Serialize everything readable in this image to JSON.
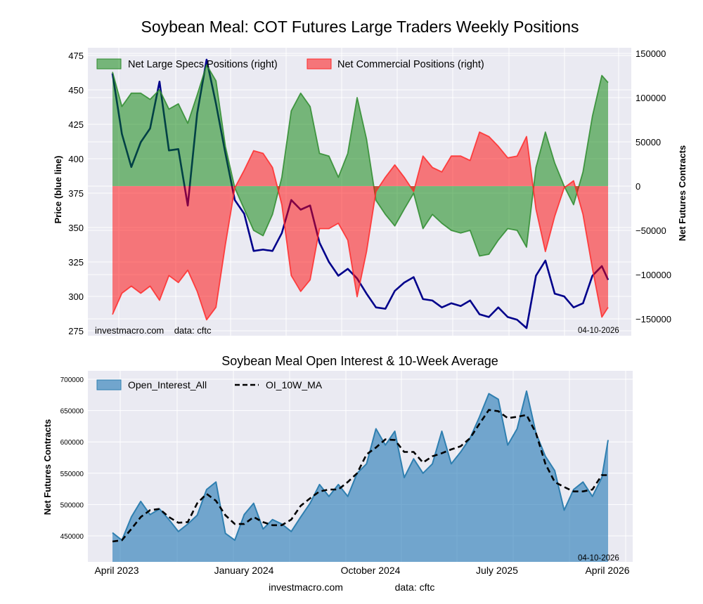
{
  "title": "Soybean Meal: COT Futures Large Traders Weekly Positions",
  "footer": {
    "site": "investmacro.com",
    "source": "data: cftc"
  },
  "chart_data": [
    {
      "type": "line+area",
      "title": "Soybean Meal: COT Futures Large Traders Weekly Positions",
      "ylabel_left": "Price (blue line)",
      "ylabel_right": "Net Futures Contracts",
      "ylim_left": [
        272,
        477
      ],
      "ylim_right": [
        -160000,
        150000
      ],
      "yticks_left": [
        275,
        300,
        325,
        350,
        375,
        400,
        425,
        450,
        475
      ],
      "yticks_right": [
        -150000,
        -100000,
        -50000,
        0,
        50000,
        100000,
        150000
      ],
      "grid": true,
      "legend": "top-left",
      "annotation_left": "investmacro.com    data: cftc",
      "annotation_right": "04-10-2026",
      "x": [
        "2023-03-28",
        "2023-04-18",
        "2023-05-09",
        "2023-05-30",
        "2023-06-20",
        "2023-07-11",
        "2023-08-01",
        "2023-08-22",
        "2023-09-12",
        "2023-10-03",
        "2023-10-24",
        "2023-11-14",
        "2023-12-05",
        "2023-12-26",
        "2024-01-16",
        "2024-02-06",
        "2024-02-27",
        "2024-03-19",
        "2024-04-09",
        "2024-04-30",
        "2024-05-21",
        "2024-06-11",
        "2024-07-02",
        "2024-07-23",
        "2024-08-13",
        "2024-09-03",
        "2024-09-24",
        "2024-10-15",
        "2024-11-05",
        "2024-11-26",
        "2024-12-17",
        "2025-01-07",
        "2025-01-28",
        "2025-02-18",
        "2025-03-11",
        "2025-04-01",
        "2025-04-22",
        "2025-05-13",
        "2025-06-03",
        "2025-06-24",
        "2025-07-15",
        "2025-08-05",
        "2025-08-26",
        "2025-09-16",
        "2025-10-07",
        "2025-10-28",
        "2025-11-18",
        "2025-12-09",
        "2025-12-30",
        "2026-01-20",
        "2026-02-10",
        "2026-03-03",
        "2026-03-24",
        "2026-04-07"
      ],
      "series": [
        {
          "name": "Net Large Specs Positions (right)",
          "axis": "right",
          "style": "area",
          "color": "#2e8b2e",
          "fill": "rgba(0,128,0,0.5)",
          "values": [
            129000,
            90000,
            105000,
            105000,
            98000,
            109000,
            87000,
            93000,
            71000,
            103000,
            137000,
            119000,
            45000,
            -2000,
            -26000,
            -50000,
            -56000,
            -32000,
            10000,
            85000,
            105000,
            90000,
            37000,
            34000,
            10000,
            37000,
            100000,
            53000,
            -16000,
            -32000,
            -45000,
            -26000,
            -8000,
            -48000,
            -32000,
            -42000,
            -50000,
            -53000,
            -50000,
            -79000,
            -77000,
            -61000,
            -48000,
            -50000,
            -69000,
            21000,
            61000,
            26000,
            0,
            -21000,
            16000,
            79000,
            125000,
            117000
          ]
        },
        {
          "name": "Net Commercial Positions (right)",
          "axis": "right",
          "style": "area",
          "color": "#ff2a2a",
          "fill": "rgba(255,0,0,0.5)",
          "values": [
            -145000,
            -121000,
            -113000,
            -121000,
            -113000,
            -129000,
            -101000,
            -109000,
            -95000,
            -119000,
            -151000,
            -137000,
            -66000,
            -2000,
            18000,
            40000,
            37000,
            21000,
            -21000,
            -101000,
            -119000,
            -106000,
            -48000,
            -48000,
            -42000,
            -61000,
            -125000,
            -74000,
            -6000,
            10000,
            24000,
            10000,
            -6000,
            34000,
            21000,
            16000,
            34000,
            34000,
            29000,
            61000,
            56000,
            45000,
            32000,
            34000,
            56000,
            -26000,
            -74000,
            -34000,
            -2000,
            6000,
            -32000,
            -93000,
            -148000,
            -137000
          ]
        },
        {
          "axis": "left",
          "style": "line",
          "color": "#00008b",
          "values": [
            462,
            418,
            394,
            412,
            422,
            456,
            406,
            407,
            366,
            433,
            472,
            440,
            404,
            370,
            360,
            333,
            334,
            333,
            346,
            370,
            363,
            366,
            339,
            325,
            315,
            320,
            313,
            302,
            292,
            291,
            304,
            310,
            314,
            298,
            297,
            292,
            295,
            293,
            297,
            287,
            285,
            292,
            285,
            283,
            277,
            315,
            326,
            302,
            300,
            292,
            295,
            315,
            322,
            312
          ]
        }
      ]
    },
    {
      "type": "line+area",
      "title": "Soybean Meal Open Interest & 10-Week Average",
      "ylabel": "Net Futures Contracts",
      "ylim": [
        410000,
        713000
      ],
      "yticks": [
        450000,
        500000,
        550000,
        600000,
        650000,
        700000
      ],
      "xticks": [
        {
          "label": "April 2023",
          "date": "2023-04-01"
        },
        {
          "label": "January 2024",
          "date": "2024-01-01"
        },
        {
          "label": "October 2024",
          "date": "2024-10-01"
        },
        {
          "label": "July 2025",
          "date": "2025-07-01"
        },
        {
          "label": "April 2026",
          "date": "2026-04-01"
        }
      ],
      "grid": true,
      "legend": "top-left",
      "annotation_right": "04-10-2026",
      "x": "same as first chart",
      "series": [
        {
          "name": "Open_Interest_All",
          "style": "area",
          "color": "#2f7fb0",
          "fill": "rgba(31,119,180,0.6)",
          "values": [
            455000,
            443000,
            480000,
            505000,
            484000,
            493000,
            476000,
            457000,
            469000,
            483000,
            524000,
            536000,
            454000,
            443000,
            484000,
            502000,
            461000,
            476000,
            469000,
            457000,
            480000,
            502000,
            532000,
            513000,
            532000,
            513000,
            550000,
            565000,
            621000,
            595000,
            617000,
            543000,
            573000,
            550000,
            565000,
            617000,
            565000,
            584000,
            606000,
            640000,
            677000,
            668000,
            595000,
            621000,
            681000,
            614000,
            577000,
            554000,
            491000,
            524000,
            536000,
            513000,
            543000,
            603000
          ]
        },
        {
          "name": "OI_10W_MA",
          "style": "dashed-line",
          "color": "#000000",
          "values": [
            441000,
            443000,
            461000,
            480000,
            491000,
            493000,
            480000,
            471000,
            472000,
            502000,
            517000,
            506000,
            483000,
            469000,
            469000,
            480000,
            472000,
            467000,
            467000,
            476000,
            498000,
            510000,
            521000,
            524000,
            524000,
            536000,
            550000,
            580000,
            591000,
            604000,
            603000,
            584000,
            584000,
            567000,
            577000,
            582000,
            588000,
            593000,
            606000,
            629000,
            651000,
            649000,
            638000,
            640000,
            643000,
            614000,
            565000,
            536000,
            528000,
            521000,
            521000,
            524000,
            547000,
            547000
          ]
        }
      ]
    }
  ]
}
